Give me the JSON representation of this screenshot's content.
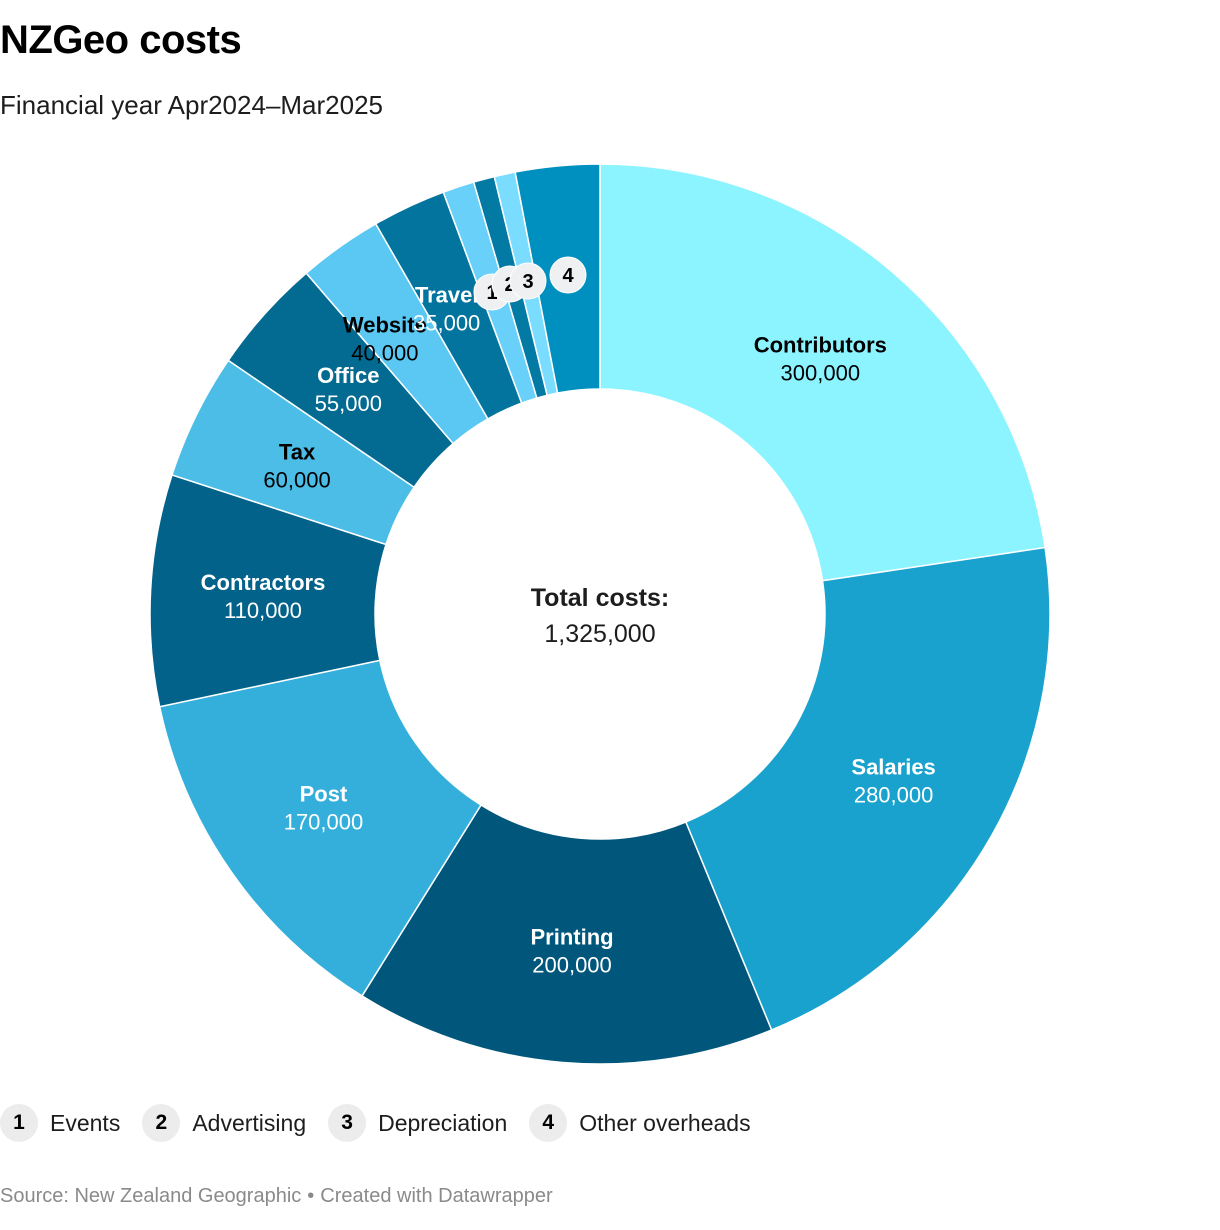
{
  "header": {
    "title": "NZGeo costs",
    "subtitle": "Financial year Apr2024–Mar2025"
  },
  "center": {
    "label": "Total costs:",
    "value": "1,325,000"
  },
  "chart_data": {
    "type": "pie",
    "variant": "donut",
    "total": 1325000,
    "slices": [
      {
        "label": "Contributors",
        "value": 300000,
        "value_label": "300,000",
        "color": "#8cf4ff",
        "text": "#000000"
      },
      {
        "label": "Salaries",
        "value": 280000,
        "value_label": "280,000",
        "color": "#19a2cd",
        "text": "#ffffff"
      },
      {
        "label": "Printing",
        "value": 200000,
        "value_label": "200,000",
        "color": "#01567b",
        "text": "#ffffff"
      },
      {
        "label": "Post",
        "value": 170000,
        "value_label": "170,000",
        "color": "#34afdb",
        "text": "#ffffff"
      },
      {
        "label": "Contractors",
        "value": 110000,
        "value_label": "110,000",
        "color": "#03628a",
        "text": "#ffffff"
      },
      {
        "label": "Tax",
        "value": 60000,
        "value_label": "60,000",
        "color": "#4bbde6",
        "text": "#000000"
      },
      {
        "label": "Office",
        "value": 55000,
        "value_label": "55,000",
        "color": "#036a91",
        "text": "#ffffff"
      },
      {
        "label": "Website",
        "value": 40000,
        "value_label": "40,000",
        "color": "#5ac8f2",
        "text": "#000000"
      },
      {
        "label": "Travel",
        "value": 35000,
        "value_label": "35,000",
        "color": "#02749d",
        "text": "#ffffff"
      },
      {
        "label": "Events",
        "value": 15000,
        "value_label": "",
        "color": "#68d0f9",
        "text": "#000000",
        "badge": "1"
      },
      {
        "label": "Advertising",
        "value": 10000,
        "value_label": "",
        "color": "#037aa3",
        "text": "#ffffff",
        "badge": "2"
      },
      {
        "label": "Depreciation",
        "value": 10000,
        "value_label": "",
        "color": "#7adcff",
        "text": "#000000",
        "badge": "3"
      },
      {
        "label": "Other overheads",
        "value": 40000,
        "value_label": "",
        "color": "#0090bf",
        "text": "#ffffff",
        "badge": "4"
      }
    ]
  },
  "legend": [
    {
      "badge": "1",
      "label": "Events"
    },
    {
      "badge": "2",
      "label": "Advertising"
    },
    {
      "badge": "3",
      "label": "Depreciation"
    },
    {
      "badge": "4",
      "label": "Other overheads"
    }
  ],
  "footer": {
    "source": "Source: New Zealand Geographic",
    "separator": "•",
    "credit": "Created with Datawrapper"
  }
}
